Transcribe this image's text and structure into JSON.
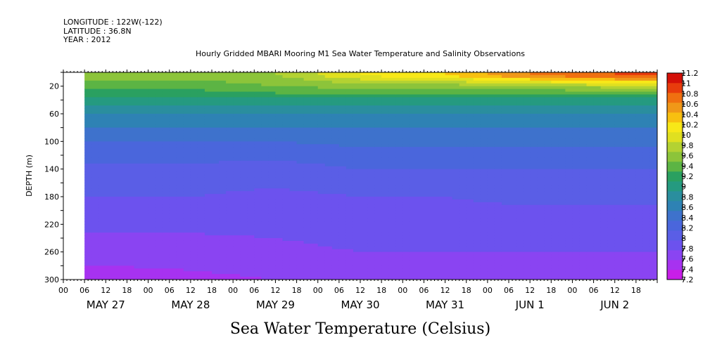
{
  "header": {
    "meta": [
      "LONGITUDE : 122W(-122)",
      "LATITUDE : 36.8N",
      "YEAR : 2012"
    ],
    "title": "Hourly Gridded MBARI Mooring M1 Sea Water Temperature and Salinity Observations"
  },
  "chart_data": {
    "type": "heatmap",
    "title": "Hourly Gridded MBARI Mooring M1 Sea Water Temperature and Salinity Observations",
    "variable_label": "Sea Water Temperature (Celsius)",
    "ylabel": "DEPTH (m)",
    "y_inverted": true,
    "ylim": [
      0,
      300
    ],
    "y_ticks": [
      20,
      60,
      100,
      140,
      180,
      220,
      260,
      300
    ],
    "x_hour_ticks": [
      "00",
      "06",
      "12",
      "18",
      "00",
      "06",
      "12",
      "18",
      "00",
      "06",
      "12",
      "18",
      "00",
      "06",
      "12",
      "18",
      "00",
      "06",
      "12",
      "18",
      "00",
      "06",
      "12",
      "18",
      "00",
      "06",
      "12",
      "18"
    ],
    "x_day_labels": [
      "MAY 27",
      "MAY 28",
      "MAY 29",
      "MAY 30",
      "MAY 31",
      "JUN  1",
      "JUN  2"
    ],
    "xlim": [
      "2012-05-27T00:00",
      "2012-06-03T00:00"
    ],
    "data_start": "2012-05-27T06:00",
    "colorbar_levels": [
      7.2,
      7.4,
      7.6,
      7.8,
      8,
      8.2,
      8.4,
      8.6,
      8.8,
      9,
      9.2,
      9.4,
      9.6,
      9.8,
      10,
      10.2,
      10.4,
      10.6,
      10.8,
      11,
      11.2
    ],
    "colorbar_labels": [
      "11.2",
      "11",
      "10.8",
      "10.6",
      "10.4",
      "10.2",
      "10",
      "9.8",
      "9.6",
      "9.4",
      "9.2",
      "9",
      "8.8",
      "8.6",
      "8.4",
      "8.2",
      "8",
      "7.8",
      "7.6",
      "7.4",
      "7.2"
    ],
    "colors": [
      "#c81ee8",
      "#a732f0",
      "#8a44f2",
      "#6c52ee",
      "#5a5ee6",
      "#4a66dc",
      "#3e72cc",
      "#2e82b4",
      "#2a8e9e",
      "#259a80",
      "#2aa060",
      "#5cb444",
      "#8cc43a",
      "#b4d232",
      "#e0e020",
      "#f8e818",
      "#f8c010",
      "#f09818",
      "#f07010",
      "#e83c0c",
      "#d41008"
    ],
    "profile_depths": [
      5,
      10,
      20,
      30,
      40,
      60,
      80,
      100,
      140,
      180,
      220,
      260,
      300
    ],
    "profiles": [
      {
        "day": "May 27",
        "temps": [
          9.5,
          9.4,
          9.3,
          9.1,
          8.9,
          8.6,
          8.4,
          8.2,
          7.95,
          7.8,
          7.65,
          7.5,
          7.3
        ]
      },
      {
        "day": "May 28",
        "temps": [
          9.5,
          9.4,
          9.3,
          9.1,
          8.9,
          8.6,
          8.4,
          8.2,
          7.95,
          7.8,
          7.65,
          7.5,
          7.35
        ]
      },
      {
        "day": "May 29",
        "temps": [
          9.6,
          9.5,
          9.4,
          9.2,
          8.9,
          8.6,
          8.4,
          8.2,
          7.9,
          7.75,
          7.65,
          7.55,
          7.4
        ]
      },
      {
        "day": "May 30",
        "temps": [
          10.0,
          9.8,
          9.5,
          9.2,
          8.9,
          8.6,
          8.4,
          8.25,
          8.0,
          7.8,
          7.7,
          7.6,
          7.45
        ]
      },
      {
        "day": "May 31",
        "temps": [
          10.2,
          9.9,
          9.5,
          9.2,
          8.9,
          8.6,
          8.4,
          8.25,
          8.0,
          7.8,
          7.7,
          7.6,
          7.45
        ]
      },
      {
        "day": "Jun 1",
        "temps": [
          10.6,
          10.2,
          9.6,
          9.2,
          8.9,
          8.6,
          8.4,
          8.25,
          8.0,
          7.85,
          7.7,
          7.6,
          7.45
        ]
      },
      {
        "day": "Jun 2",
        "temps": [
          10.8,
          10.4,
          9.7,
          9.3,
          8.9,
          8.6,
          8.4,
          8.25,
          8.0,
          7.85,
          7.7,
          7.6,
          7.45
        ]
      }
    ],
    "grid": false,
    "legend": "colorbar right"
  }
}
